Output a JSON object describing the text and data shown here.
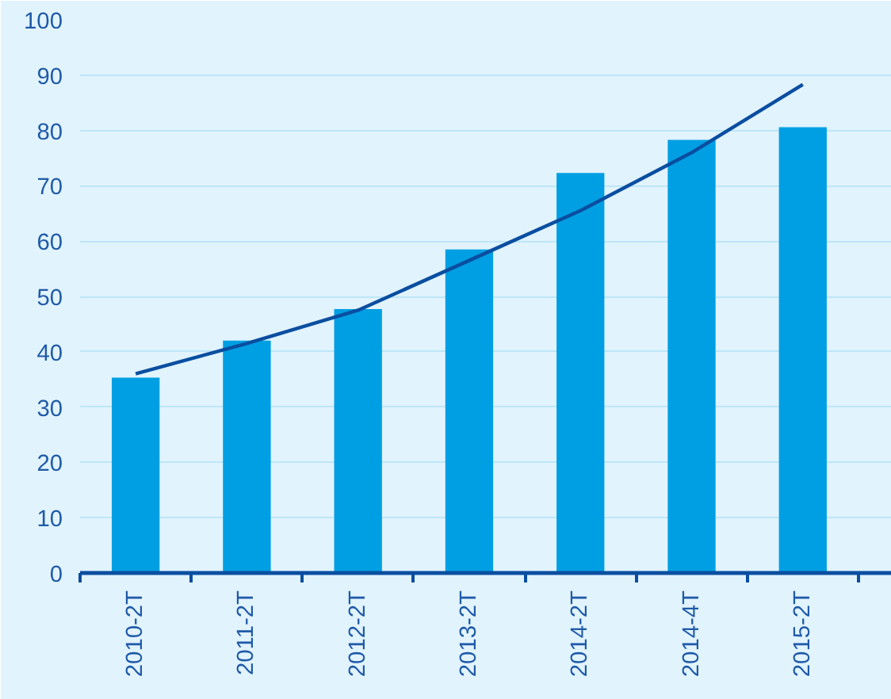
{
  "chart_data": {
    "type": "bar",
    "categories": [
      "2010-2T",
      "2011-2T",
      "2012-2T",
      "2013-2T",
      "2014-2T",
      "2014-4T",
      "2015-2T"
    ],
    "series": [
      {
        "color": "#009fe3",
        "values": [
          35.3,
          42,
          47.7,
          58.5,
          72.3,
          78.3,
          80.6
        ]
      },
      {
        "type": "line",
        "color": "#0a4ea0",
        "values": [
          36,
          41.5,
          47.5,
          56.5,
          65.5,
          76,
          88.3
        ]
      }
    ],
    "ylim": [
      0,
      100
    ],
    "yticks": [
      0,
      10,
      20,
      30,
      40,
      50,
      60,
      70,
      80,
      90,
      100
    ],
    "grid": "y"
  }
}
